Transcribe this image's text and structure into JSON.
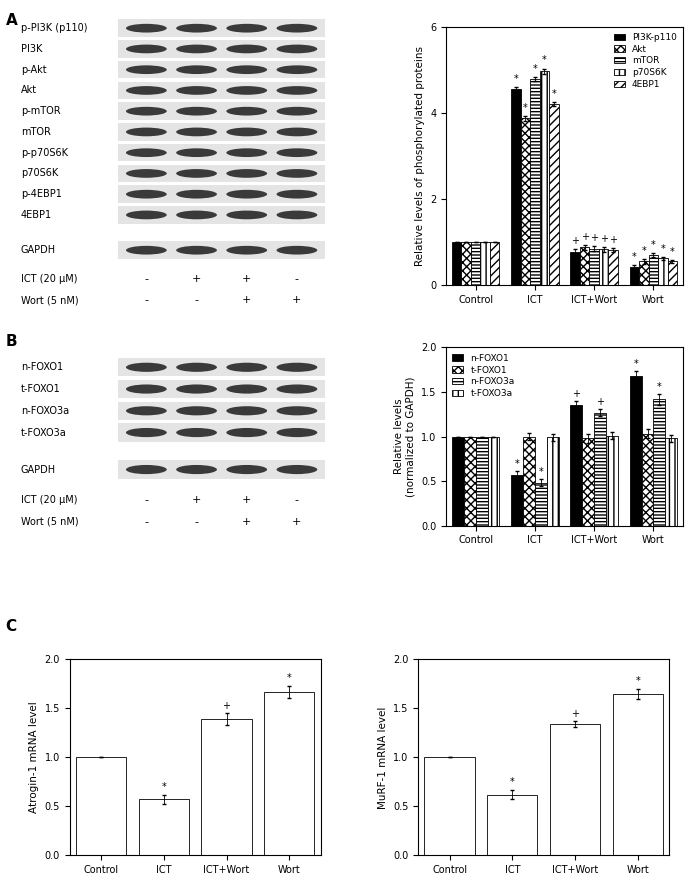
{
  "chart_data": [
    {
      "type": "bar",
      "categories": [
        "Control",
        "ICT",
        "ICT+Wort",
        "Wort"
      ],
      "y_label": "Relative levels of phosphorylated proteins",
      "ylim": [
        0,
        6
      ],
      "yticks": [
        0,
        2,
        4,
        6
      ],
      "legend": "upper right",
      "series": [
        {
          "name": "PI3K-p110",
          "color": "#000000",
          "values": [
            1.0,
            4.55,
            0.78,
            0.42
          ],
          "errors": [
            0,
            0.05,
            0.05,
            0.04
          ],
          "annotations": [
            null,
            "*",
            "+",
            "*"
          ]
        },
        {
          "name": "Akt",
          "color": "#ffffff",
          "values": [
            1.0,
            3.87,
            0.88,
            0.55
          ],
          "errors": [
            0,
            0.05,
            0.06,
            0.05
          ],
          "annotations": [
            null,
            "*",
            "+",
            "*"
          ]
        },
        {
          "name": "mTOR",
          "color": "#ffffff",
          "values": [
            1.0,
            4.78,
            0.85,
            0.7
          ],
          "errors": [
            0,
            0.05,
            0.05,
            0.04
          ],
          "annotations": [
            null,
            "*",
            "+",
            "*"
          ]
        },
        {
          "name": "p70S6K",
          "color": "#ffffff",
          "values": [
            1.0,
            4.97,
            0.83,
            0.62
          ],
          "errors": [
            0,
            0.06,
            0.05,
            0.04
          ],
          "annotations": [
            null,
            "*",
            "+",
            "*"
          ]
        },
        {
          "name": "4EBP1",
          "color": "#ffffff",
          "values": [
            1.0,
            4.2,
            0.82,
            0.55
          ],
          "errors": [
            0,
            0.05,
            0.05,
            0.04
          ],
          "annotations": [
            null,
            "*",
            "+",
            "*"
          ]
        }
      ]
    },
    {
      "type": "bar",
      "categories": [
        "Control",
        "ICT",
        "ICT+Wort",
        "Wort"
      ],
      "y_label": "Relative levels\n(normalized to GAPDH)",
      "ylim": [
        0,
        2.0
      ],
      "yticks": [
        {
          "value": 0,
          "label": "0.0"
        },
        {
          "value": 0.5,
          "label": "0.5"
        },
        {
          "value": 1.0,
          "label": "1.0"
        },
        {
          "value": 1.5,
          "label": "1.5"
        },
        {
          "value": 2.0,
          "label": "2.0"
        }
      ],
      "legend": "upper left",
      "series": [
        {
          "name": "n-FOXO1",
          "color": "#000000",
          "values": [
            1.0,
            0.57,
            1.35,
            1.68
          ],
          "errors": [
            0,
            0.04,
            0.05,
            0.06
          ],
          "annotations": [
            null,
            "*",
            "+",
            "*"
          ]
        },
        {
          "name": "t-FOXO1",
          "color": "#ffffff",
          "values": [
            1.0,
            1.0,
            0.98,
            1.03
          ],
          "errors": [
            0,
            0.04,
            0.05,
            0.05
          ],
          "annotations": [
            null,
            null,
            null,
            null
          ]
        },
        {
          "name": "n-FOXO3a",
          "color": "#ffffff",
          "values": [
            1.0,
            0.48,
            1.27,
            1.42
          ],
          "errors": [
            0,
            0.04,
            0.04,
            0.06
          ],
          "annotations": [
            null,
            "*",
            "+",
            "*"
          ]
        },
        {
          "name": "t-FOXO3a",
          "color": "#ffffff",
          "values": [
            1.0,
            0.99,
            1.01,
            0.98
          ],
          "errors": [
            0,
            0.04,
            0.04,
            0.04
          ],
          "annotations": [
            null,
            null,
            null,
            null
          ]
        }
      ]
    },
    {
      "type": "bar",
      "categories": [
        "Control",
        "ICT",
        "ICT+Wort",
        "Wort"
      ],
      "y_label": "Atrogin-1 mRNA level",
      "ylim": [
        0,
        2.0
      ],
      "yticks": [
        {
          "value": 0,
          "label": "0.0"
        },
        {
          "value": 0.5,
          "label": "0.5"
        },
        {
          "value": 1.0,
          "label": "1.0"
        },
        {
          "value": 1.5,
          "label": "1.5"
        },
        {
          "value": 2.0,
          "label": "2.0"
        }
      ],
      "series": [
        {
          "color": "#ffffff",
          "values": [
            1.0,
            0.57,
            1.39,
            1.67
          ],
          "errors": [
            0,
            0.05,
            0.06,
            0.06
          ],
          "annotations": [
            null,
            "*",
            "+",
            "*"
          ]
        }
      ]
    },
    {
      "type": "bar",
      "categories": [
        "Control",
        "ICT",
        "ICT+Wort",
        "Wort"
      ],
      "y_label": "MuRF-1 mRNA level",
      "ylim": [
        0,
        2.0
      ],
      "yticks": [
        {
          "value": 0,
          "label": "0.0"
        },
        {
          "value": 0.5,
          "label": "0.5"
        },
        {
          "value": 1.0,
          "label": "1.0"
        },
        {
          "value": 1.5,
          "label": "1.5"
        },
        {
          "value": 2.0,
          "label": "2.0"
        }
      ],
      "series": [
        {
          "color": "#ffffff",
          "values": [
            1.0,
            0.62,
            1.34,
            1.65
          ],
          "errors": [
            0,
            0.05,
            0.03,
            0.05
          ],
          "annotations": [
            null,
            "*",
            "+",
            "*"
          ]
        }
      ]
    }
  ],
  "figure": {
    "panel_labels": [
      "A",
      "B",
      "C"
    ],
    "blots": [
      {
        "row_groups": [
          [
            "p-PI3K (p110)",
            "PI3K",
            "p-Akt",
            "Akt",
            "p-mTOR",
            "mTOR",
            "p-p70S6K",
            "p70S6K",
            "p-4EBP1",
            "4EBP1"
          ],
          [
            "GAPDH"
          ]
        ],
        "treatments": [
          {
            "label": "ICT (20 μM)",
            "signs": [
              "-",
              "+",
              "+",
              "-"
            ]
          },
          {
            "label": "Wort (5 nM)",
            "signs": [
              "-",
              "-",
              "+",
              "+"
            ]
          }
        ]
      },
      {
        "row_groups": [
          [
            "n-FOXO1",
            "t-FOXO1",
            "n-FOXO3a",
            "t-FOXO3a"
          ],
          [
            "GAPDH"
          ]
        ],
        "treatments": [
          {
            "label": "ICT (20 μM)",
            "signs": [
              "-",
              "+",
              "+",
              "-"
            ]
          },
          {
            "label": "Wort (5 nM)",
            "signs": [
              "-",
              "-",
              "+",
              "+"
            ]
          }
        ]
      }
    ]
  }
}
